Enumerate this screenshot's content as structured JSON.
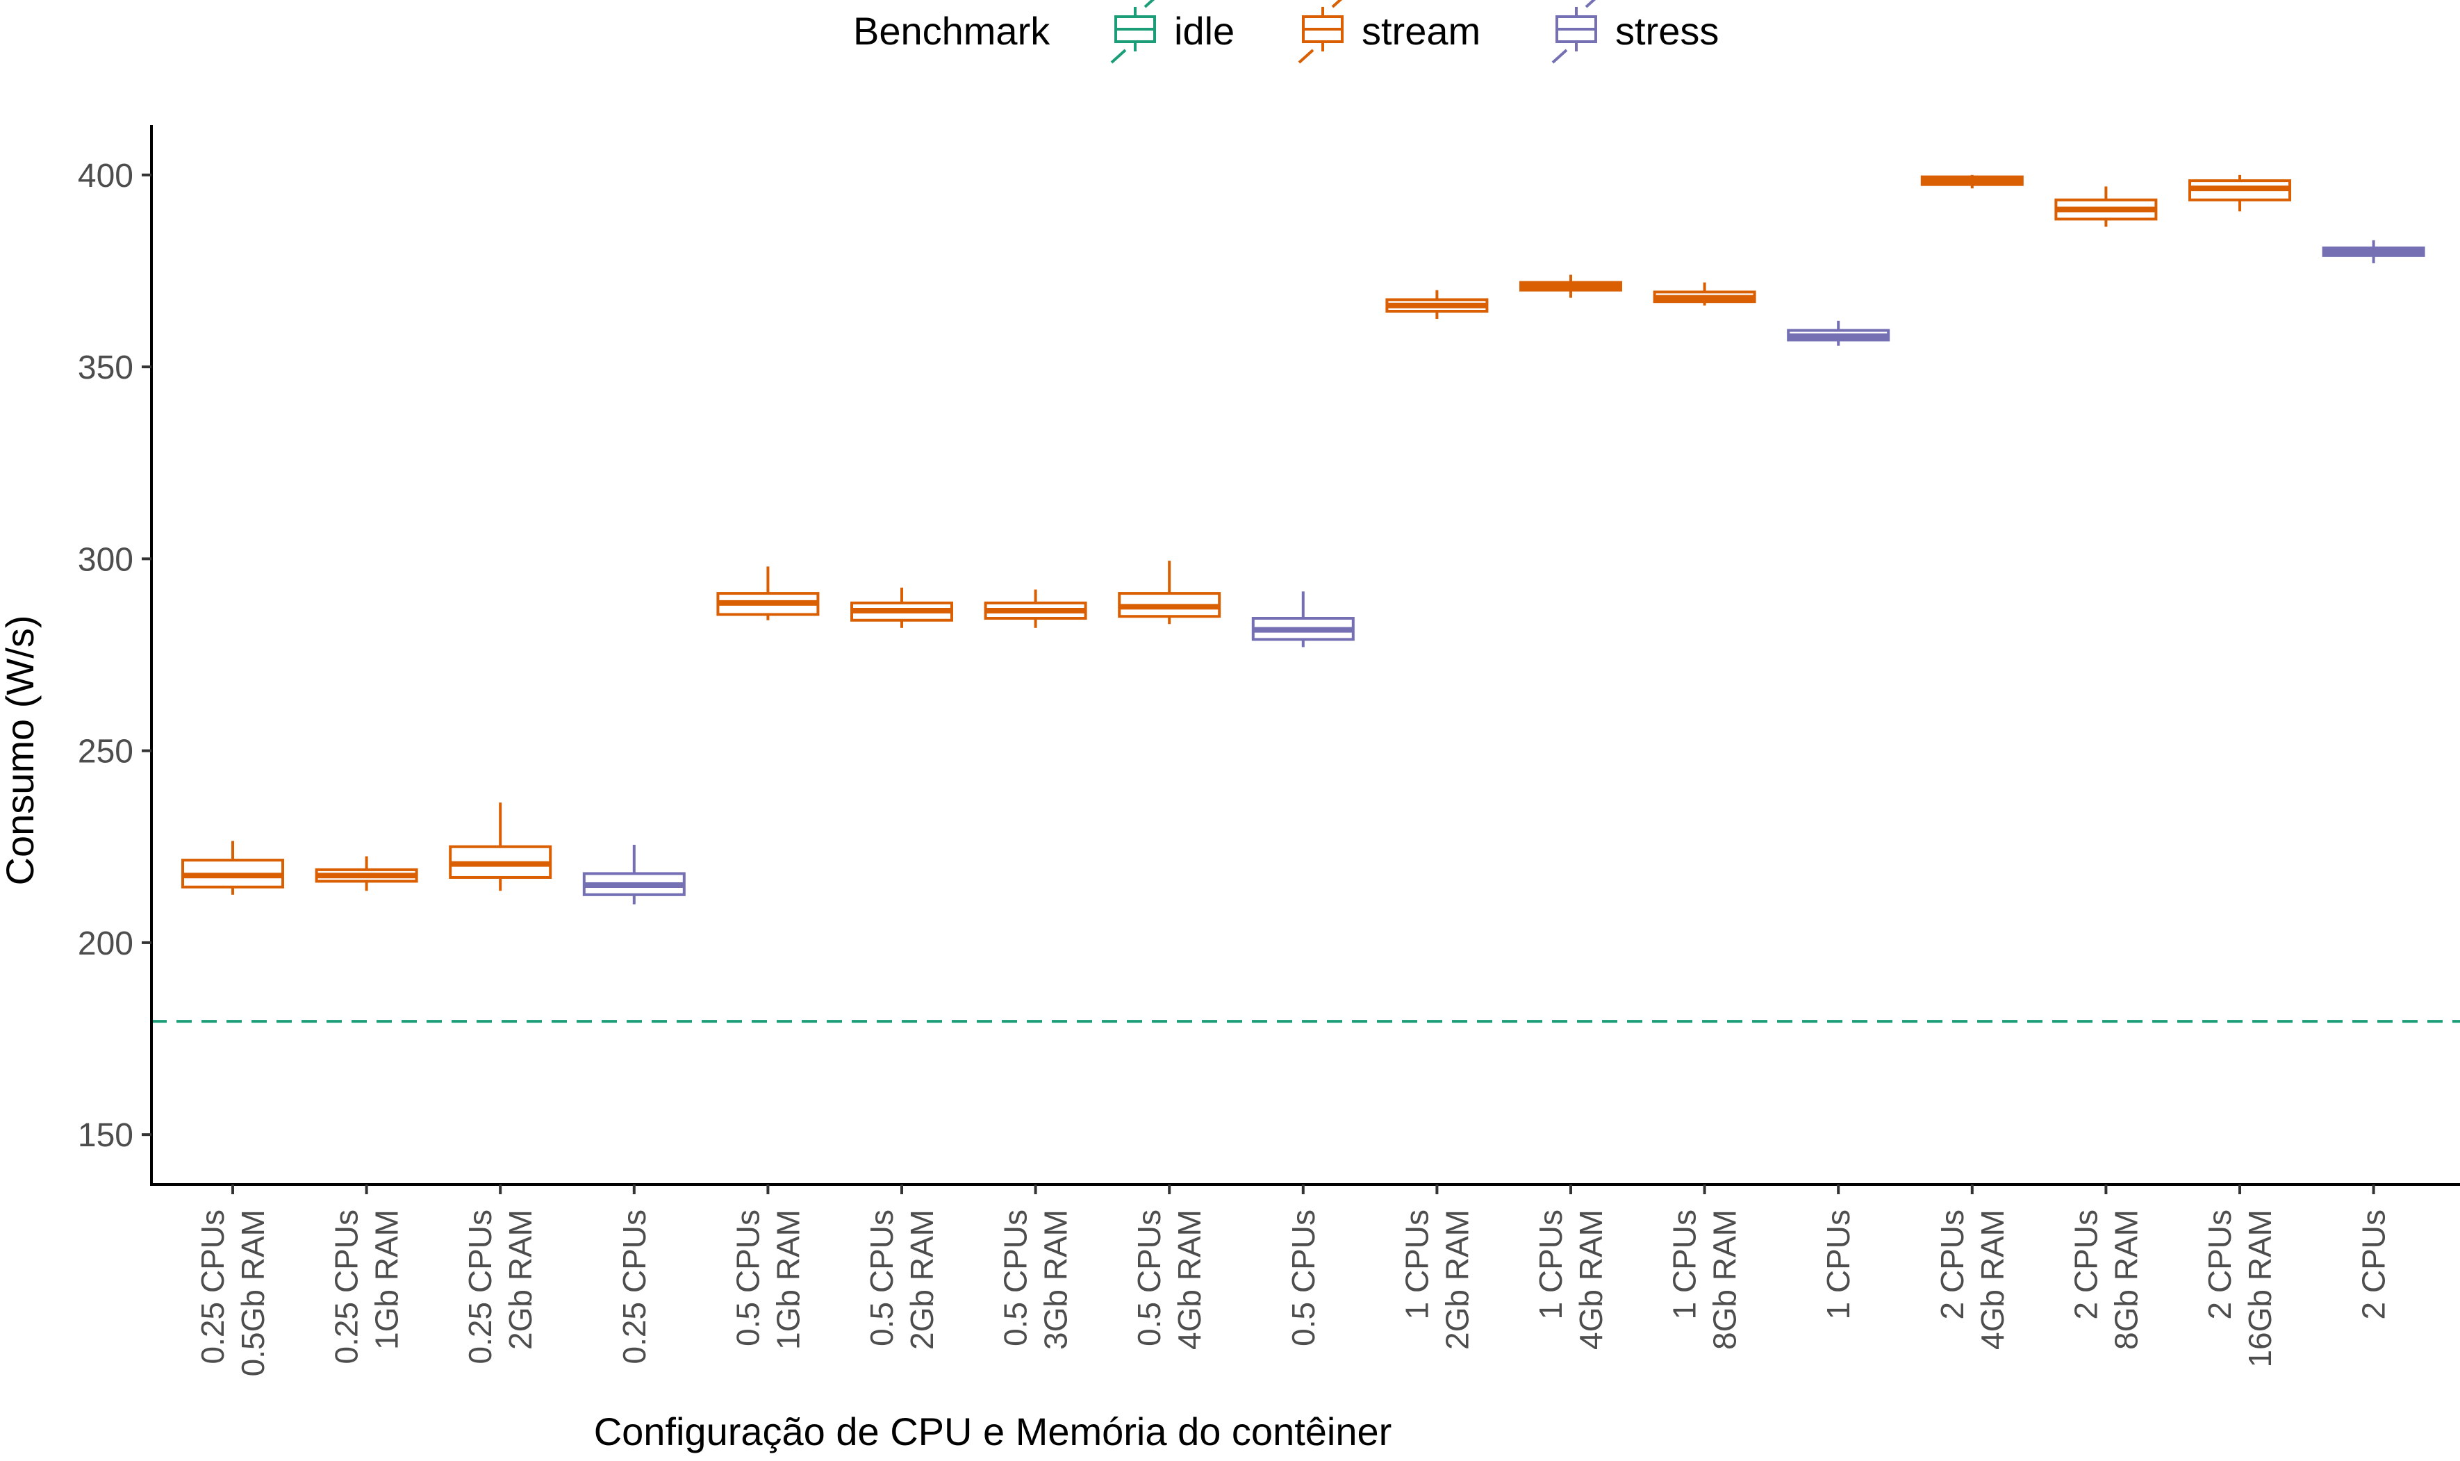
{
  "chart_data": {
    "type": "boxplot",
    "xlabel": "Configuração de CPU e Memória do contêiner",
    "ylabel": "Consumo (W/s)",
    "ylim": [
      137,
      413
    ],
    "yticks": [
      150,
      200,
      250,
      300,
      350,
      400
    ],
    "legend": {
      "title": "Benchmark",
      "position": "top",
      "entries": [
        {
          "name": "idle",
          "color": "#1b9e77"
        },
        {
          "name": "stream",
          "color": "#d95f02"
        },
        {
          "name": "stress",
          "color": "#7570b3"
        }
      ]
    },
    "reference_lines": [
      {
        "series": "idle",
        "y": 179.5,
        "style": "dashed",
        "color": "#1b9e77"
      }
    ],
    "categories": [
      {
        "label": [
          "0.25 CPUs",
          "0.5Gb RAM"
        ],
        "series": "stream",
        "min": 212.5,
        "q1": 214.5,
        "median": 217.5,
        "q3": 221.5,
        "max": 226.5
      },
      {
        "label": [
          "0.25 CPUs",
          "1Gb RAM"
        ],
        "series": "stream",
        "min": 213.5,
        "q1": 216.0,
        "median": 217.5,
        "q3": 219.0,
        "max": 222.5
      },
      {
        "label": [
          "0.25 CPUs",
          "2Gb RAM"
        ],
        "series": "stream",
        "min": 213.5,
        "q1": 217.0,
        "median": 220.5,
        "q3": 225.0,
        "max": 236.5
      },
      {
        "label": [
          "0.25 CPUs"
        ],
        "series": "stress",
        "min": 210.0,
        "q1": 212.5,
        "median": 215.0,
        "q3": 218.0,
        "max": 225.5
      },
      {
        "label": [
          "0.5 CPUs",
          "1Gb RAM"
        ],
        "series": "stream",
        "min": 284.0,
        "q1": 285.5,
        "median": 288.5,
        "q3": 291.0,
        "max": 298.0
      },
      {
        "label": [
          "0.5 CPUs",
          "2Gb RAM"
        ],
        "series": "stream",
        "min": 282.0,
        "q1": 284.0,
        "median": 286.5,
        "q3": 288.5,
        "max": 292.5
      },
      {
        "label": [
          "0.5 CPUs",
          "3Gb RAM"
        ],
        "series": "stream",
        "min": 282.0,
        "q1": 284.5,
        "median": 286.5,
        "q3": 288.5,
        "max": 292.0
      },
      {
        "label": [
          "0.5 CPUs",
          "4Gb RAM"
        ],
        "series": "stream",
        "min": 283.0,
        "q1": 285.0,
        "median": 287.5,
        "q3": 291.0,
        "max": 299.5
      },
      {
        "label": [
          "0.5 CPUs"
        ],
        "series": "stress",
        "min": 277.0,
        "q1": 279.0,
        "median": 281.5,
        "q3": 284.5,
        "max": 291.5
      },
      {
        "label": [
          "1 CPUs",
          "2Gb RAM"
        ],
        "series": "stream",
        "min": 362.5,
        "q1": 364.5,
        "median": 366.0,
        "q3": 367.5,
        "max": 370.0
      },
      {
        "label": [
          "1 CPUs",
          "4Gb RAM"
        ],
        "series": "stream",
        "min": 368.0,
        "q1": 370.0,
        "median": 371.0,
        "q3": 372.0,
        "max": 374.0
      },
      {
        "label": [
          "1 CPUs",
          "8Gb RAM"
        ],
        "series": "stream",
        "min": 366.0,
        "q1": 367.0,
        "median": 368.0,
        "q3": 369.5,
        "max": 372.0
      },
      {
        "label": [
          "1 CPUs"
        ],
        "series": "stress",
        "min": 355.5,
        "q1": 357.0,
        "median": 358.0,
        "q3": 359.5,
        "max": 362.0
      },
      {
        "label": [
          "2 CPUs",
          "4Gb RAM"
        ],
        "series": "stream",
        "min": 396.5,
        "q1": 397.5,
        "median": 398.5,
        "q3": 399.5,
        "max": 400.0
      },
      {
        "label": [
          "2 CPUs",
          "8Gb RAM"
        ],
        "series": "stream",
        "min": 386.5,
        "q1": 388.5,
        "median": 391.0,
        "q3": 393.5,
        "max": 397.0
      },
      {
        "label": [
          "2 CPUs",
          "16Gb RAM"
        ],
        "series": "stream",
        "min": 390.5,
        "q1": 393.5,
        "median": 396.5,
        "q3": 398.5,
        "max": 400.0
      },
      {
        "label": [
          "2 CPUs"
        ],
        "series": "stress",
        "min": 377.0,
        "q1": 379.0,
        "median": 380.0,
        "q3": 381.0,
        "max": 383.0
      }
    ]
  }
}
